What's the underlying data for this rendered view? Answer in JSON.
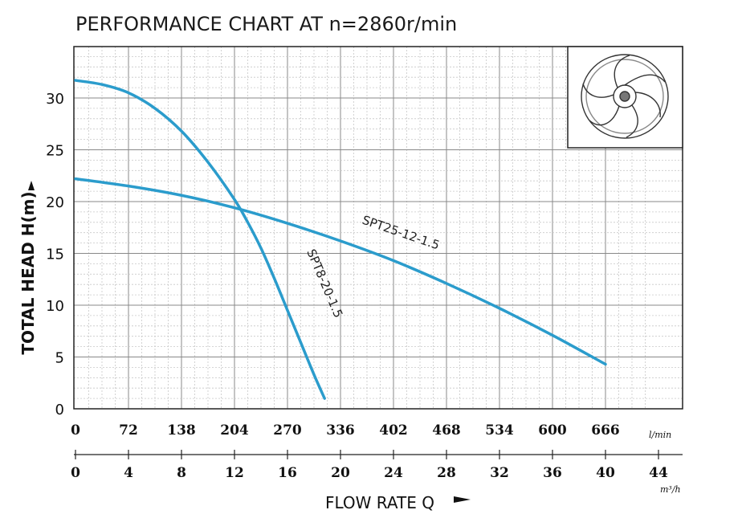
{
  "chart_data": {
    "type": "line",
    "title": "PERFORMANCE CHART AT n=2860r/min",
    "xlabel": "FLOW RATE Q",
    "ylabel": "TOTAL HEAD H(m)",
    "x_unit_lmin": "l/min",
    "x_unit_m3h": "m³/h",
    "xlim_lmin": [
      0,
      726
    ],
    "xlim_m3h": [
      0,
      44
    ],
    "ylim": [
      0,
      35
    ],
    "x_ticks_lmin": [
      "0",
      "72",
      "138",
      "204",
      "270",
      "336",
      "402",
      "468",
      "534",
      "600",
      "666"
    ],
    "x_ticks_m3h": [
      "0",
      "4",
      "8",
      "12",
      "16",
      "20",
      "24",
      "28",
      "32",
      "36",
      "40",
      "44"
    ],
    "y_ticks": [
      "0",
      "5",
      "10",
      "15",
      "20",
      "25",
      "30"
    ],
    "grid": true,
    "series": [
      {
        "name": "SPT8-20-1.5",
        "color": "#2b9ccc",
        "x_m3h": [
          0,
          2,
          4,
          6,
          8,
          10,
          12,
          13,
          14,
          15,
          16,
          17,
          18,
          18.8
        ],
        "y": [
          31.7,
          31.3,
          30.5,
          29.0,
          26.8,
          23.8,
          20.2,
          18.0,
          15.5,
          12.6,
          9.5,
          6.4,
          3.3,
          1.0
        ]
      },
      {
        "name": "SPT25-12-1.5",
        "color": "#2b9ccc",
        "x_m3h": [
          0,
          4,
          8,
          12,
          16,
          20,
          24,
          28,
          32,
          36,
          40
        ],
        "y": [
          22.2,
          21.5,
          20.6,
          19.4,
          17.9,
          16.2,
          14.3,
          12.1,
          9.7,
          7.1,
          4.3
        ]
      }
    ]
  },
  "inset": {
    "icon": "impeller-icon"
  }
}
